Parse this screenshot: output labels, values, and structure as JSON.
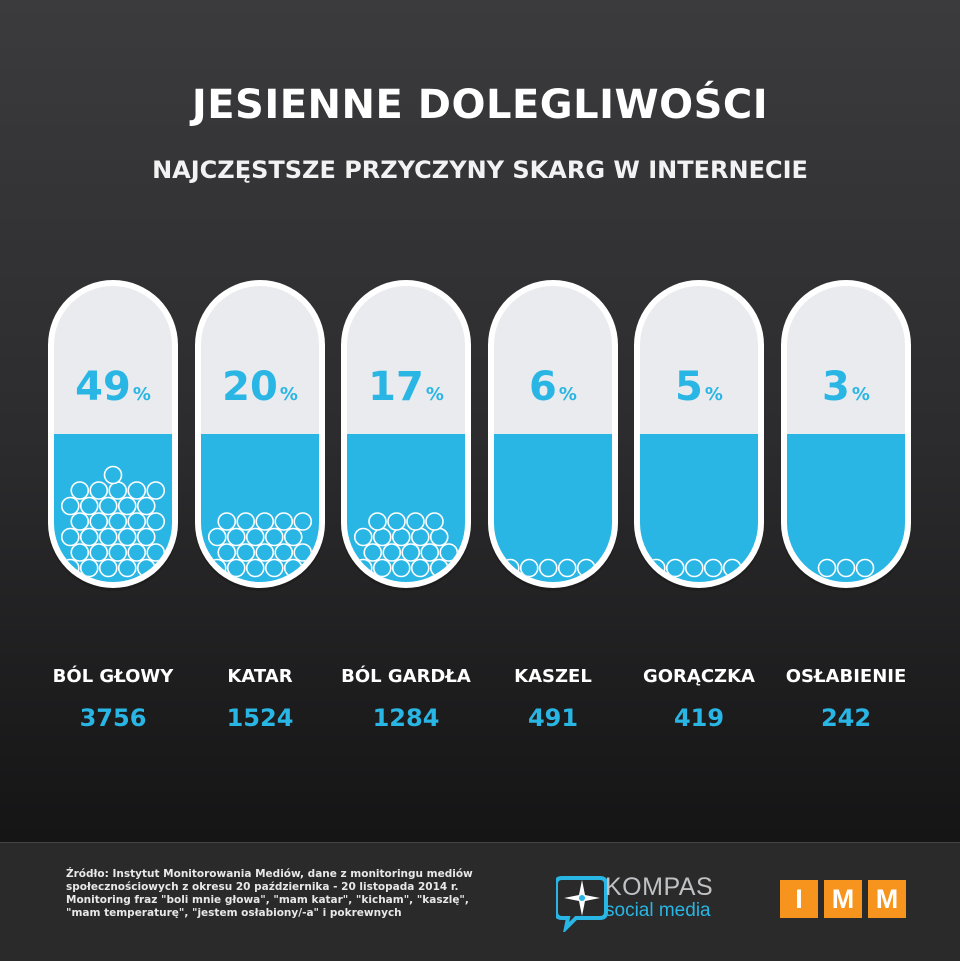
{
  "header": {
    "title": "JESIENNE DOLEGLIWOŚCI",
    "subtitle": "NAJCZĘSTSZE PRZYCZYNY SKARG W INTERNECIE"
  },
  "chart_data": {
    "type": "bar",
    "title": "JESIENNE DOLEGLIWOŚCI",
    "subtitle": "NAJCZĘSTSZE PRZYCZYNY SKARG W INTERNECIE",
    "categories": [
      "BÓL GŁOWY",
      "KATAR",
      "BÓL GARDŁA",
      "KASZEL",
      "GORĄCZKA",
      "OSŁABIENIE"
    ],
    "percent_labels": [
      "49",
      "20",
      "17",
      "6",
      "5",
      "3"
    ],
    "percent_unit": "%",
    "values": [
      3756,
      1524,
      1284,
      491,
      419,
      242
    ],
    "bubble_counts": [
      31,
      20,
      19,
      5,
      5,
      3
    ]
  },
  "footer": {
    "source_text": "Źródło: Instytut Monitorowania Mediów, dane z monitoringu mediów społecznościowych z okresu 20 października - 20 listopada 2014 r. Monitoring fraz \"boli mnie głowa\", \"mam katar\", \"kicham\", \"kaszlę\", \"mam temperaturę\", \"jestem osłabiony/-a\" i pokrewnych",
    "kompas_name": "KOMPAS",
    "kompas_sub": "social media",
    "imm_letters": [
      "I",
      "M",
      "M"
    ]
  },
  "colors": {
    "accent": "#29b6e4",
    "capsule_top": "#e9ebee",
    "capsule_rim": "#ffffff",
    "imm_orange": "#f7941d"
  }
}
